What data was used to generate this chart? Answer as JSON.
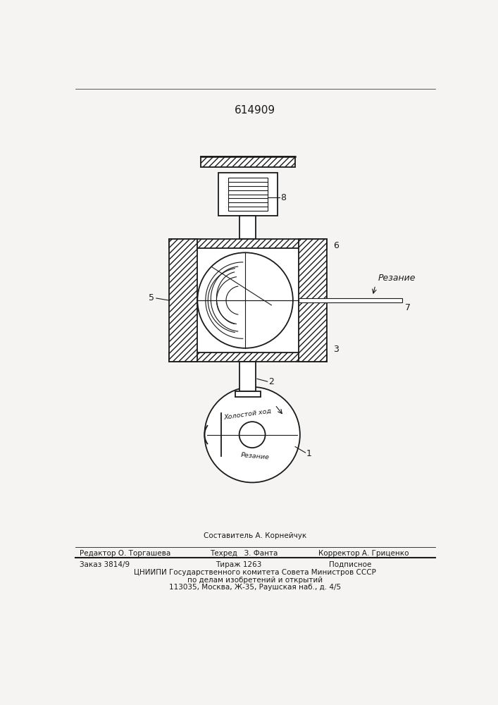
{
  "patent_number": "614909",
  "bg_color": "#f5f4f2",
  "line_color": "#1a1a1a",
  "title_fontsize": 11,
  "label_fontsize": 9,
  "footer_fontsize": 7.5,
  "sestavitel": "Составитель А. Корнейчук",
  "redaktor": "Редактор О. Торгашева",
  "tehred": "Техред   З. Фанта",
  "korrektor": "Корректор А. Гриценко",
  "zakaz": "Заказ 3814/9",
  "tirazh": "Тираж 1263",
  "podpisnoe": "Подписное",
  "cniipи": "ЦНИИПИ Государственного комитета Совета Министров СССР",
  "po_delam": "по делам изобретений и открытий",
  "address": "113035, Москва, Ж-35, Раушская наб., д. 4/5"
}
